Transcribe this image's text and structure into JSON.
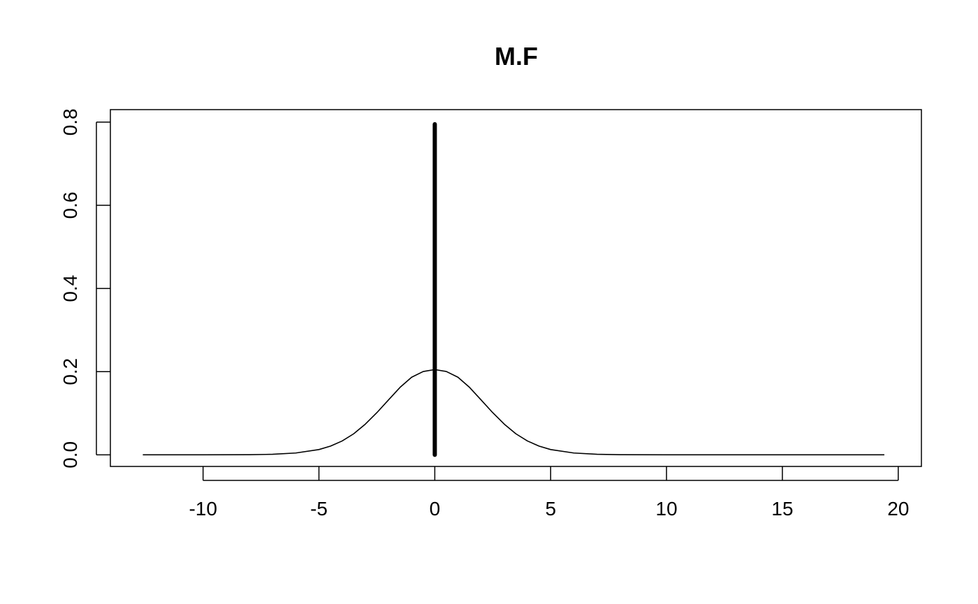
{
  "chart_data": {
    "type": "line",
    "title": "M.F",
    "xlabel": "",
    "ylabel": "",
    "xlim": [
      -14,
      21
    ],
    "ylim": [
      -0.028,
      0.83
    ],
    "x_ticks": [
      -10,
      -5,
      0,
      5,
      10,
      15,
      20
    ],
    "x_tick_labels": [
      "-10",
      "-5",
      "0",
      "5",
      "10",
      "15",
      "20"
    ],
    "y_ticks": [
      0.0,
      0.2,
      0.4,
      0.6,
      0.8
    ],
    "y_tick_labels": [
      "0.0",
      "0.2",
      "0.4",
      "0.6",
      "0.8"
    ],
    "grid": false,
    "legend": "none",
    "series": [
      {
        "kind": "density-curve",
        "x_range": [
          -12.6,
          19.4
        ],
        "peak_x": 0,
        "peak_y": 0.205,
        "color": "#000000",
        "points": [
          [
            -12.6,
            0.0
          ],
          [
            -10,
            0.0
          ],
          [
            -8,
            0.0003
          ],
          [
            -7,
            0.0012
          ],
          [
            -6,
            0.0043
          ],
          [
            -5,
            0.0126
          ],
          [
            -4.5,
            0.0209
          ],
          [
            -4,
            0.0332
          ],
          [
            -3.5,
            0.0505
          ],
          [
            -3,
            0.0736
          ],
          [
            -2.5,
            0.1013
          ],
          [
            -2,
            0.1318
          ],
          [
            -1.5,
            0.1621
          ],
          [
            -1,
            0.1865
          ],
          [
            -0.5,
            0.2003
          ],
          [
            0,
            0.205
          ],
          [
            0.5,
            0.2003
          ],
          [
            1,
            0.1865
          ],
          [
            1.5,
            0.1621
          ],
          [
            2,
            0.1318
          ],
          [
            2.5,
            0.1013
          ],
          [
            3,
            0.0736
          ],
          [
            3.5,
            0.0505
          ],
          [
            4,
            0.0332
          ],
          [
            4.5,
            0.0209
          ],
          [
            5,
            0.0126
          ],
          [
            6,
            0.0043
          ],
          [
            7,
            0.0012
          ],
          [
            8,
            0.0003
          ],
          [
            10,
            0.0
          ],
          [
            15,
            0.0
          ],
          [
            19.4,
            0.0
          ]
        ]
      },
      {
        "kind": "vertical-segment",
        "x": 0,
        "y_from": 0,
        "y_to": 0.795,
        "color": "#000000"
      }
    ]
  }
}
